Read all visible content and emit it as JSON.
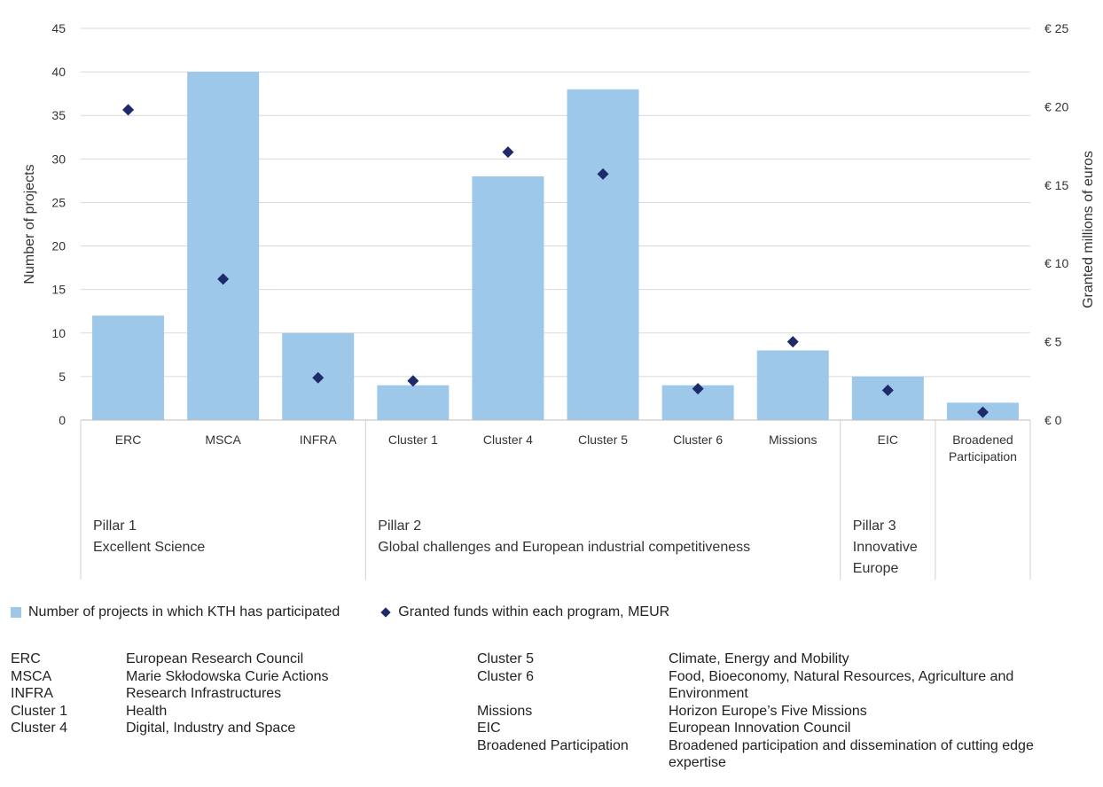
{
  "chart_data": {
    "type": "bar",
    "categories": [
      "ERC",
      "MSCA",
      "INFRA",
      "Cluster 1",
      "Cluster 4",
      "Cluster 5",
      "Cluster 6",
      "Missions",
      "EIC",
      "Broadened Participation"
    ],
    "category_labels": [
      [
        "ERC"
      ],
      [
        "MSCA"
      ],
      [
        "INFRA"
      ],
      [
        "Cluster 1"
      ],
      [
        "Cluster 4"
      ],
      [
        "Cluster 5"
      ],
      [
        "Cluster 6"
      ],
      [
        "Missions"
      ],
      [
        "EIC"
      ],
      [
        "Broadened",
        "Participation"
      ]
    ],
    "series": [
      {
        "name": "Number of projects in which KTH has participated",
        "type": "bar",
        "axis": "left",
        "color": "#9dc8ea",
        "values": [
          12,
          40,
          10,
          4,
          28,
          38,
          4,
          8,
          5,
          2
        ]
      },
      {
        "name": "Granted funds within each program, MEUR",
        "type": "scatter",
        "marker": "diamond",
        "axis": "right",
        "color": "#1e2a6b",
        "values": [
          19.8,
          9.0,
          2.7,
          2.5,
          17.1,
          15.7,
          2.0,
          5.0,
          1.9,
          0.5
        ]
      }
    ],
    "ylabel": "Number of projects",
    "y2label": "Granted millions of euros",
    "ylim": [
      0,
      45
    ],
    "y2lim": [
      0,
      25
    ],
    "y_ticks": [
      "0",
      "5",
      "10",
      "15",
      "20",
      "25",
      "30",
      "35",
      "40",
      "45"
    ],
    "y2_ticks": [
      "€ 0",
      "€ 5",
      "€ 10",
      "€ 15",
      "€ 20",
      "€ 25"
    ],
    "grid": true,
    "legend_position": "bottom-left",
    "pillars": [
      {
        "lines": [
          "Pillar 1",
          "Excellent Science"
        ],
        "categories": [
          "ERC",
          "MSCA",
          "INFRA"
        ]
      },
      {
        "lines": [
          "Pillar 2",
          "Global challenges and European industrial competitiveness"
        ],
        "categories": [
          "Cluster 1",
          "Cluster 4",
          "Cluster 5",
          "Cluster 6",
          "Missions"
        ]
      },
      {
        "lines": [
          "Pillar 3",
          "Innovative",
          "Europe"
        ],
        "categories": [
          "EIC"
        ]
      },
      {
        "lines": [],
        "categories": [
          "Broadened Participation"
        ]
      }
    ]
  },
  "legend": {
    "bar": "Number of projects in which KTH has participated",
    "diamond": "Granted funds within each program, MEUR"
  },
  "abbreviations_left": [
    {
      "abbr": "ERC",
      "full": "European Research Council"
    },
    {
      "abbr": "MSCA",
      "full": "Marie Skłodowska Curie Actions"
    },
    {
      "abbr": "INFRA",
      "full": "Research Infrastructures"
    },
    {
      "abbr": "Cluster 1",
      "full": "Health"
    },
    {
      "abbr": "Cluster 4",
      "full": "Digital, Industry and Space"
    }
  ],
  "abbreviations_right": [
    {
      "abbr": "Cluster 5",
      "full": "Climate, Energy and Mobility"
    },
    {
      "abbr": "Cluster 6",
      "full": "Food, Bioeconomy, Natural Resources, Agriculture and Environment"
    },
    {
      "abbr": "Missions",
      "full": "Horizon Europe’s Five Missions"
    },
    {
      "abbr": "EIC",
      "full": "European Innovation Council"
    },
    {
      "abbr": "Broadened Participation",
      "full": "Broadened participation and dissemination of cutting edge expertise"
    }
  ]
}
